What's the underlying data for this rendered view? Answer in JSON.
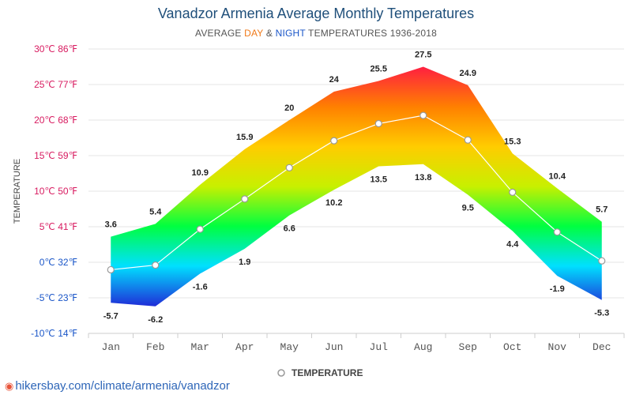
{
  "header": {
    "title": "Vanadzor Armenia Average Monthly Temperatures",
    "subtitle_prefix": "AVERAGE",
    "subtitle_day": "DAY",
    "subtitle_amp": "&",
    "subtitle_night": "NIGHT",
    "subtitle_suffix": "TEMPERATURES 1936-2018"
  },
  "footer": {
    "url": "hikersbay.com/climate/armenia/vanadzor"
  },
  "chart_data": {
    "type": "area",
    "title": "Vanadzor Armenia Average Monthly Temperatures",
    "subtitle": "AVERAGE DAY & NIGHT TEMPERATURES 1936-2018",
    "ylabel": "TEMPERATURE",
    "xlabel": "",
    "categories": [
      "Jan",
      "Feb",
      "Mar",
      "Apr",
      "May",
      "Jun",
      "Jul",
      "Aug",
      "Sep",
      "Oct",
      "Nov",
      "Dec"
    ],
    "series": [
      {
        "name": "Day",
        "values": [
          3.6,
          5.4,
          10.9,
          15.9,
          20,
          24,
          25.5,
          27.5,
          24.9,
          15.3,
          10.4,
          5.7
        ]
      },
      {
        "name": "Night",
        "values": [
          -5.7,
          -6.2,
          -1.6,
          1.9,
          6.6,
          10.2,
          13.5,
          13.8,
          9.5,
          4.4,
          -1.9,
          -5.3
        ]
      },
      {
        "name": "TEMPERATURE",
        "values": [
          -1.05,
          -0.4,
          4.65,
          8.9,
          13.3,
          17.1,
          19.5,
          20.65,
          17.2,
          9.85,
          4.25,
          0.2
        ]
      }
    ],
    "day_labels": [
      "3.6",
      "5.4",
      "10.9",
      "15.9",
      "20",
      "24",
      "25.5",
      "27.5",
      "24.9",
      "15.3",
      "10.4",
      "5.7"
    ],
    "night_labels": [
      "-5.7",
      "-6.2",
      "-1.6",
      "1.9",
      "6.6",
      "10.2",
      "13.5",
      "13.8",
      "9.5",
      "4.4",
      "-1.9",
      "-5.3"
    ],
    "ylim": [
      -10,
      30
    ],
    "yticks": [
      30,
      25,
      20,
      15,
      10,
      5,
      0,
      -5,
      -10
    ],
    "ytick_labels": [
      "30℃ 86℉",
      "25℃ 77℉",
      "20℃ 68℉",
      "15℃ 59℉",
      "10℃ 50℉",
      "5℃ 41℉",
      "0℃ 32℉",
      "-5℃ 23℉",
      "-10℃ 14℉"
    ],
    "legend": [
      "TEMPERATURE"
    ],
    "legend_position": "bottom-center",
    "grid": true,
    "colors": {
      "line": "#ffffff",
      "point_stroke": "#999999",
      "tick_warm": "#d81b60",
      "tick_cold": "#1a56c8",
      "grid": "#e6e6e6",
      "gradient_stops": [
        "#1f2fd8",
        "#00e0ff",
        "#00ff40",
        "#c8f000",
        "#ffcc00",
        "#ff8000",
        "#ff2040"
      ]
    }
  }
}
